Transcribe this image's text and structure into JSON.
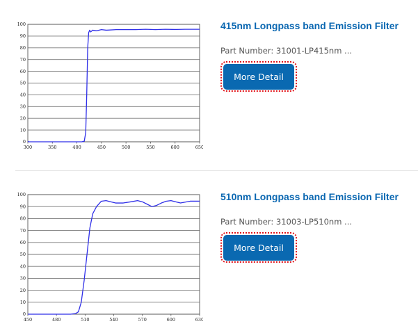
{
  "products": [
    {
      "title": "415nm Longpass band Emission Filter",
      "part_number": "Part Number: 31001-LP415nm ...",
      "button_label": "More Detail",
      "chart": {
        "x_ticks": [
          "300",
          "350",
          "400",
          "450",
          "500",
          "550",
          "600",
          "650"
        ],
        "y_ticks": [
          "0",
          "10",
          "20",
          "30",
          "40",
          "50",
          "60",
          "70",
          "80",
          "90",
          "100"
        ]
      }
    },
    {
      "title": "510nm Longpass band Emission Filter",
      "part_number": "Part Number: 31003-LP510nm ...",
      "button_label": "More Detail",
      "chart": {
        "x_ticks": [
          "450",
          "480",
          "510",
          "540",
          "570",
          "600",
          "630"
        ],
        "y_ticks": [
          "0",
          "10",
          "20",
          "30",
          "40",
          "50",
          "60",
          "70",
          "80",
          "90",
          "100"
        ]
      }
    }
  ],
  "chart_data": [
    {
      "type": "line",
      "xlim": [
        300,
        650
      ],
      "ylim": [
        0,
        100
      ],
      "grid": true,
      "series": [
        {
          "x": [
            300,
            302,
            305,
            400,
            410,
            415,
            418,
            420,
            422,
            424,
            426,
            428,
            432,
            440,
            450,
            460,
            480,
            500,
            520,
            540,
            560,
            580,
            600,
            620,
            640,
            650
          ],
          "y": [
            0.5,
            0,
            0,
            0,
            0,
            0.5,
            8,
            40,
            80,
            93,
            95,
            93.5,
            95,
            94.5,
            95.5,
            95,
            95.5,
            95.5,
            95.5,
            95.8,
            95.5,
            95.8,
            95.6,
            95.8,
            95.8,
            95.8
          ]
        }
      ]
    },
    {
      "type": "line",
      "xlim": [
        450,
        630
      ],
      "ylim": [
        0,
        100
      ],
      "grid": true,
      "series": [
        {
          "x": [
            450,
            460,
            480,
            495,
            500,
            503,
            506,
            509,
            512,
            515,
            518,
            522,
            527,
            532,
            537,
            542,
            550,
            558,
            565,
            570,
            575,
            580,
            585,
            590,
            595,
            600,
            610,
            620,
            630
          ],
          "y": [
            0,
            0,
            0,
            0,
            0.5,
            2,
            10,
            28,
            50,
            72,
            84,
            90,
            94.5,
            95,
            94,
            93,
            93,
            94,
            95,
            94,
            92,
            90,
            91,
            93,
            94.5,
            95,
            93,
            94.5,
            94.5
          ]
        }
      ]
    }
  ]
}
